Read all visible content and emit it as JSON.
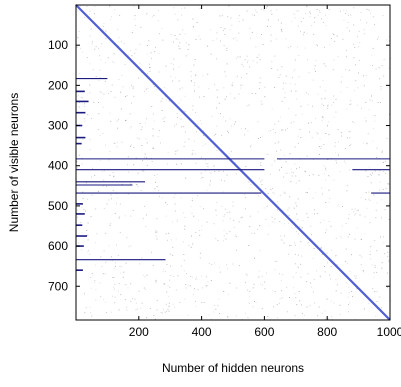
{
  "chart_data": {
    "type": "heatmap",
    "xlabel": "Number of hidden neurons",
    "ylabel": "Number of visible neurons",
    "xlim": [
      0,
      1000
    ],
    "ylim": [
      784,
      0
    ],
    "x_ticks": [
      "200",
      "400",
      "600",
      "800",
      "1000"
    ],
    "y_ticks": [
      "100",
      "200",
      "300",
      "400",
      "500",
      "600",
      "700"
    ],
    "y_axis_inverted": true,
    "grid": false,
    "legend": "none",
    "colors": {
      "dense": "#1a1a80",
      "diagonal": "#3344cc",
      "sparse": "#9a9a9a",
      "frame": "#000000"
    },
    "diagonal": {
      "from": [
        0,
        0
      ],
      "to": [
        1000,
        784
      ]
    },
    "dense_rows": [
      {
        "y": 183,
        "x_end": 100
      },
      {
        "y": 383,
        "x_end": 600
      },
      {
        "y": 410,
        "x_end": 600
      },
      {
        "y": 440,
        "x_end": 220
      },
      {
        "y": 448,
        "x_end": 180
      },
      {
        "y": 468,
        "x_end": 590
      },
      {
        "y": 634,
        "x_end": 285
      }
    ],
    "partial_rows": [
      {
        "y": 383,
        "x_start": 640,
        "x_end": 1000
      },
      {
        "y": 410,
        "x_start": 880,
        "x_end": 1000
      },
      {
        "y": 468,
        "x_start": 940,
        "x_end": 1000
      }
    ],
    "short_rows": [
      {
        "y": 215,
        "x_end": 28
      },
      {
        "y": 240,
        "x_end": 40
      },
      {
        "y": 268,
        "x_end": 30
      },
      {
        "y": 300,
        "x_end": 20
      },
      {
        "y": 330,
        "x_end": 30
      },
      {
        "y": 345,
        "x_end": 18
      },
      {
        "y": 495,
        "x_end": 22
      },
      {
        "y": 520,
        "x_end": 28
      },
      {
        "y": 548,
        "x_end": 20
      },
      {
        "y": 575,
        "x_end": 35
      },
      {
        "y": 600,
        "x_end": 25
      },
      {
        "y": 660,
        "x_end": 22
      }
    ],
    "sparse_density": 0.015
  }
}
